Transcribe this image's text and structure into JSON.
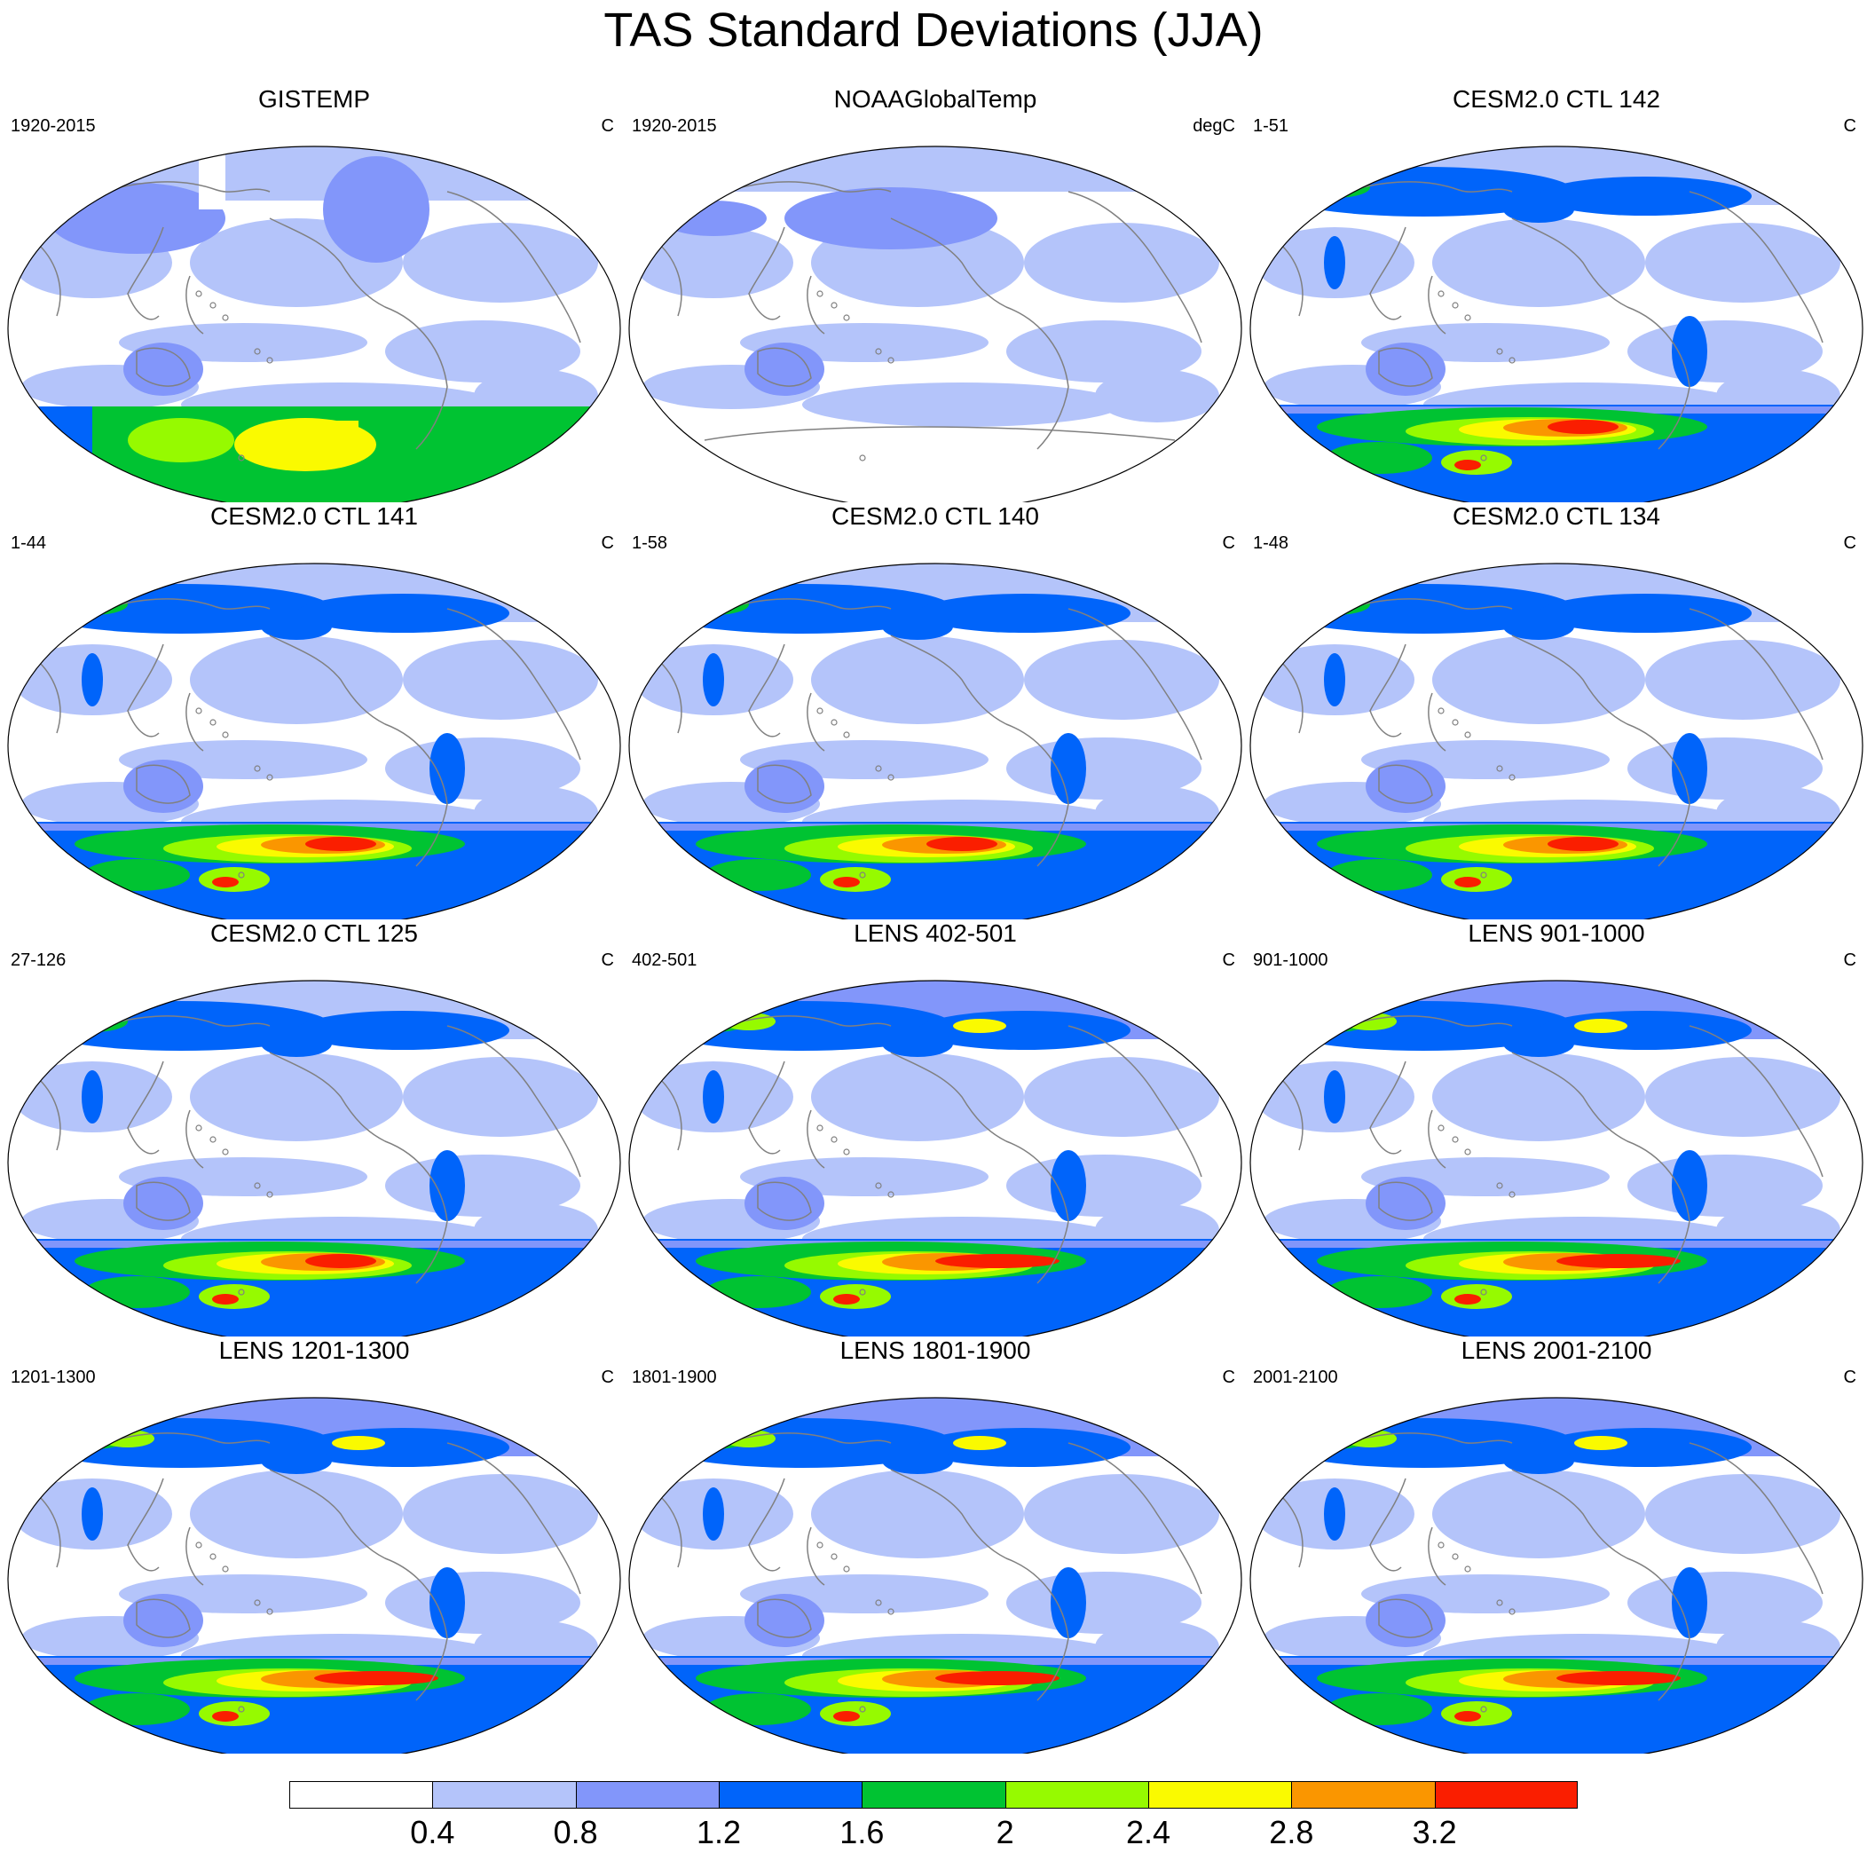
{
  "title": "TAS Standard Deviations (JJA)",
  "panels": [
    {
      "title": "GISTEMP",
      "left": "1920-2015",
      "right": "C",
      "style": "obs_gis"
    },
    {
      "title": "NOAAGlobalTemp",
      "left": "1920-2015",
      "right": "degC",
      "style": "obs_noaa"
    },
    {
      "title": "CESM2.0 CTL 142",
      "left": "1-51",
      "right": "C",
      "style": "ctl"
    },
    {
      "title": "CESM2.0 CTL 141",
      "left": "1-44",
      "right": "C",
      "style": "ctl"
    },
    {
      "title": "CESM2.0 CTL 140",
      "left": "1-58",
      "right": "C",
      "style": "ctl"
    },
    {
      "title": "CESM2.0 CTL 134",
      "left": "1-48",
      "right": "C",
      "style": "ctl"
    },
    {
      "title": "CESM2.0 CTL 125",
      "left": "27-126",
      "right": "C",
      "style": "ctl"
    },
    {
      "title": "LENS 402-501",
      "left": "402-501",
      "right": "C",
      "style": "lens"
    },
    {
      "title": "LENS 901-1000",
      "left": "901-1000",
      "right": "C",
      "style": "lens"
    },
    {
      "title": "LENS 1201-1300",
      "left": "1201-1300",
      "right": "C",
      "style": "lens"
    },
    {
      "title": "LENS 1801-1900",
      "left": "1801-1900",
      "right": "C",
      "style": "lens"
    },
    {
      "title": "LENS 2001-2100",
      "left": "2001-2100",
      "right": "C",
      "style": "lens"
    }
  ],
  "colorbar": {
    "colors": [
      "#ffffff",
      "#b4c4fa",
      "#8296fa",
      "#0064fa",
      "#00c332",
      "#96fa00",
      "#fafa00",
      "#fa9600",
      "#fa1e00"
    ],
    "labels": [
      "0.4",
      "0.8",
      "1.2",
      "1.6",
      "2",
      "2.4",
      "2.8",
      "3.2"
    ]
  }
}
